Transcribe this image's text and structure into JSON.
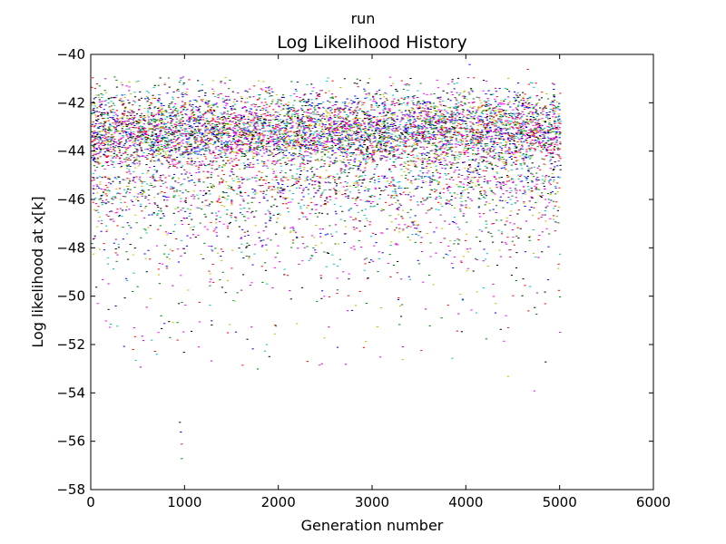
{
  "figure": {
    "suptitle": "run"
  },
  "chart_data": {
    "type": "scatter",
    "title": "Log Likelihood History",
    "xlabel": "Generation number",
    "ylabel": "Log likelihood at x[k]",
    "xlim": [
      0,
      6000
    ],
    "ylim": [
      -58,
      -40
    ],
    "xticks": [
      0,
      1000,
      2000,
      3000,
      4000,
      5000,
      6000
    ],
    "yticks": [
      -58,
      -56,
      -54,
      -52,
      -50,
      -48,
      -46,
      -44,
      -42,
      -40
    ],
    "xtick_labels": [
      "0",
      "1000",
      "2000",
      "3000",
      "4000",
      "5000",
      "6000"
    ],
    "ytick_labels": [
      "−58",
      "−56",
      "−54",
      "−52",
      "−50",
      "−48",
      "−46",
      "−44",
      "−42",
      "−40"
    ],
    "grid": false,
    "marker": "pixel",
    "n_generations": 5000,
    "series_colors": [
      "#000000",
      "#0000ff",
      "#ff0000",
      "#008000",
      "#00bfbf",
      "#bf00bf",
      "#bfbf00",
      "#ff00ff"
    ],
    "distribution_summary": {
      "dense_band": [
        -45,
        -41
      ],
      "median_approx": -43.2,
      "upper_edge": -40.9,
      "sparse_tail_to": -53
    },
    "outlier_points": [
      {
        "x": 940,
        "y": -55.2
      },
      {
        "x": 950,
        "y": -55.6
      },
      {
        "x": 960,
        "y": -56.1
      },
      {
        "x": 960,
        "y": -56.7
      },
      {
        "x": 640,
        "y": -51.8
      },
      {
        "x": 2710,
        "y": -52.8
      },
      {
        "x": 4440,
        "y": -53.3
      },
      {
        "x": 4720,
        "y": -53.9
      },
      {
        "x": 4840,
        "y": -52.7
      },
      {
        "x": 4030,
        "y": -40.4
      },
      {
        "x": 4650,
        "y": -40.6
      }
    ]
  }
}
